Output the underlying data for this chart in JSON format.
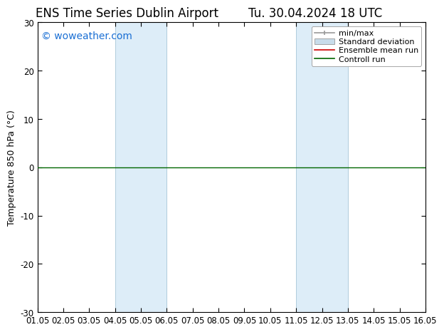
{
  "title": "ENS Time Series Dublin Airport",
  "title2": "Tu. 30.04.2024 18 UTC",
  "ylabel": "Temperature 850 hPa (°C)",
  "ylim": [
    -30,
    30
  ],
  "yticks": [
    -30,
    -20,
    -10,
    0,
    10,
    20,
    30
  ],
  "xtick_labels": [
    "01.05",
    "02.05",
    "03.05",
    "04.05",
    "05.05",
    "06.05",
    "07.05",
    "08.05",
    "09.05",
    "10.05",
    "11.05",
    "12.05",
    "13.05",
    "14.05",
    "15.05",
    "16.05"
  ],
  "background_color": "#ffffff",
  "plot_bg_color": "#ffffff",
  "shade_regions": [
    {
      "xstart": 3.0,
      "xend": 5.0
    },
    {
      "xstart": 10.0,
      "xend": 12.0
    }
  ],
  "shade_color": "#ddedf8",
  "shade_border_color": "#b0ccdd",
  "zero_line_color": "#006600",
  "zero_line_y": 0,
  "watermark_text": "© woweather.com",
  "watermark_color": "#1a6fd4",
  "watermark_fontsize": 10,
  "legend_entries": [
    {
      "label": "min/max",
      "color": "#999999",
      "lw": 1.2,
      "style": "minmax"
    },
    {
      "label": "Standard deviation",
      "color": "#c8dcea",
      "style": "box"
    },
    {
      "label": "Ensemble mean run",
      "color": "#cc0000",
      "lw": 1.2,
      "style": "line"
    },
    {
      "label": "Controll run",
      "color": "#006600",
      "lw": 1.2,
      "style": "line"
    }
  ],
  "title_fontsize": 12,
  "axis_fontsize": 9,
  "tick_fontsize": 8.5
}
